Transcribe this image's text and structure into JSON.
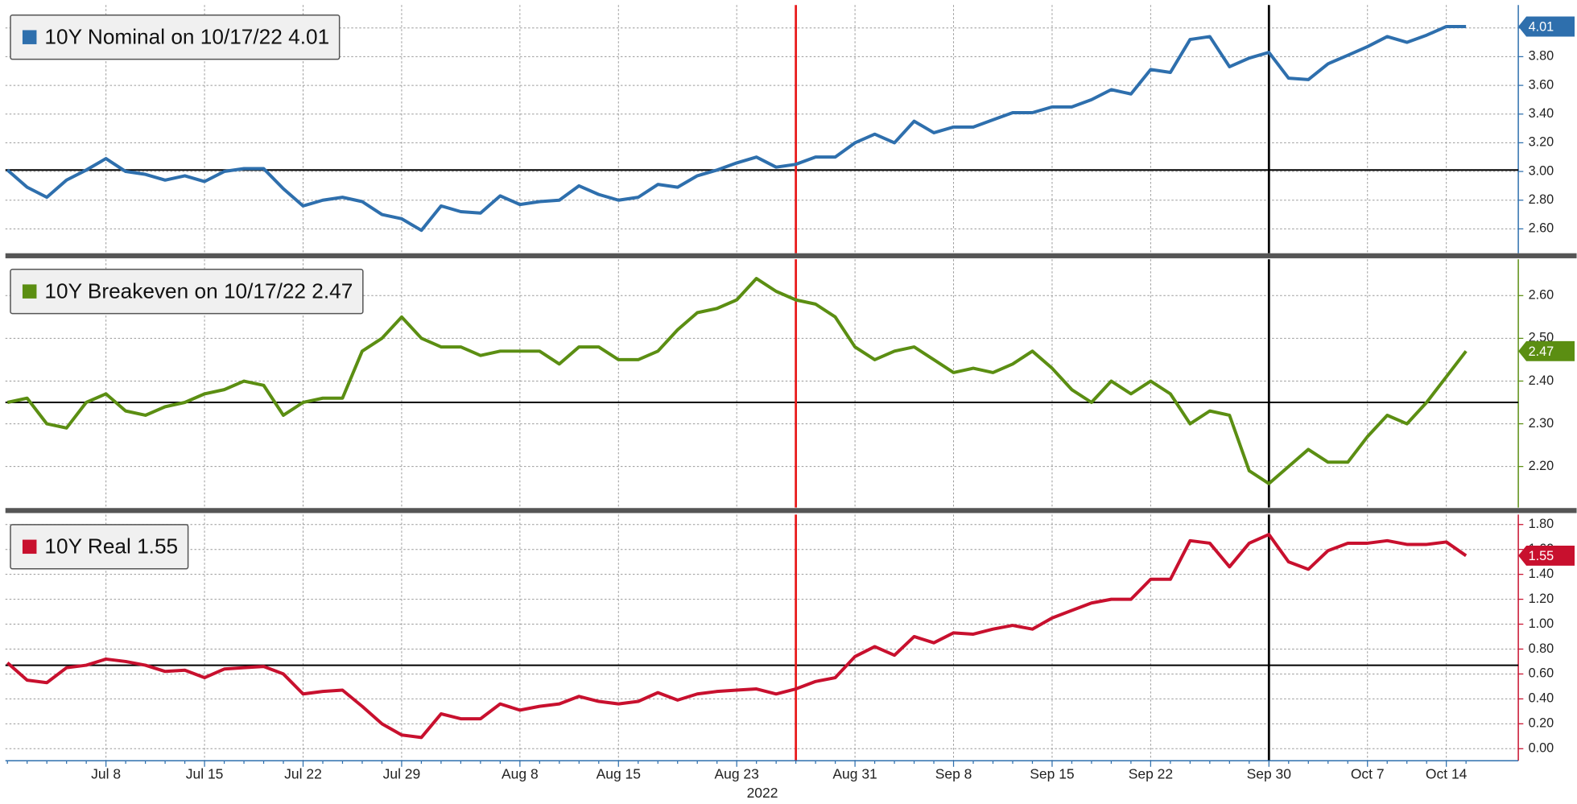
{
  "chart_data": [
    {
      "type": "line",
      "ylim": [
        2.43,
        4.16
      ],
      "yticks": [
        {
          "value": 2.6,
          "label": "2.60"
        },
        {
          "value": 2.8,
          "label": "2.80"
        },
        {
          "value": 3.0,
          "label": "3.00"
        },
        {
          "value": 3.2,
          "label": "3.20"
        },
        {
          "value": 3.4,
          "label": "3.40"
        },
        {
          "value": 3.6,
          "label": "3.60"
        },
        {
          "value": 3.8,
          "label": "3.80"
        },
        {
          "value": 4.0,
          "label": "4.00"
        }
      ],
      "hline": 3.01,
      "grid": true,
      "series": [
        {
          "name": "10Y Nominal on 10/17/22 4.01",
          "color": "#2e6fad",
          "values": [
            3.01,
            2.89,
            2.82,
            2.94,
            3.01,
            3.09,
            3.0,
            2.98,
            2.94,
            2.97,
            2.93,
            3.0,
            3.02,
            3.02,
            2.88,
            2.76,
            2.8,
            2.82,
            2.79,
            2.7,
            2.67,
            2.59,
            2.76,
            2.72,
            2.71,
            2.83,
            2.77,
            2.79,
            2.8,
            2.9,
            2.84,
            2.8,
            2.82,
            2.91,
            2.89,
            2.97,
            3.01,
            3.06,
            3.1,
            3.03,
            3.05,
            3.1,
            3.1,
            3.2,
            3.26,
            3.2,
            3.35,
            3.27,
            3.31,
            3.31,
            3.36,
            3.41,
            3.41,
            3.45,
            3.45,
            3.5,
            3.57,
            3.54,
            3.71,
            3.69,
            3.92,
            3.94,
            3.73,
            3.79,
            3.83,
            3.65,
            3.64,
            3.75,
            3.81,
            3.87,
            3.94,
            3.9,
            3.95,
            4.01,
            4.01
          ]
        }
      ]
    },
    {
      "type": "line",
      "ylim": [
        2.104,
        2.685
      ],
      "yticks": [
        {
          "value": 2.2,
          "label": "2.20"
        },
        {
          "value": 2.3,
          "label": "2.30"
        },
        {
          "value": 2.4,
          "label": "2.40"
        },
        {
          "value": 2.5,
          "label": "2.50"
        },
        {
          "value": 2.6,
          "label": "2.60"
        }
      ],
      "hline": 2.35,
      "grid": true,
      "series": [
        {
          "name": "10Y Breakeven on 10/17/22 2.47",
          "color": "#5b8e12",
          "values": [
            2.35,
            2.36,
            2.3,
            2.29,
            2.35,
            2.37,
            2.33,
            2.32,
            2.34,
            2.35,
            2.37,
            2.38,
            2.4,
            2.39,
            2.32,
            2.35,
            2.36,
            2.36,
            2.47,
            2.5,
            2.55,
            2.5,
            2.48,
            2.48,
            2.46,
            2.47,
            2.47,
            2.47,
            2.44,
            2.48,
            2.48,
            2.45,
            2.45,
            2.47,
            2.52,
            2.56,
            2.57,
            2.59,
            2.64,
            2.61,
            2.59,
            2.58,
            2.55,
            2.48,
            2.45,
            2.47,
            2.48,
            2.45,
            2.42,
            2.43,
            2.42,
            2.44,
            2.47,
            2.43,
            2.38,
            2.35,
            2.4,
            2.37,
            2.4,
            2.37,
            2.3,
            2.33,
            2.32,
            2.19,
            2.16,
            2.2,
            2.24,
            2.21,
            2.21,
            2.27,
            2.32,
            2.3,
            2.35,
            2.41,
            2.47
          ]
        }
      ]
    },
    {
      "type": "line",
      "ylim": [
        -0.097,
        1.88
      ],
      "yticks": [
        {
          "value": 0,
          "label": "0.00"
        },
        {
          "value": 0.2,
          "label": "0.20"
        },
        {
          "value": 0.4,
          "label": "0.40"
        },
        {
          "value": 0.6,
          "label": "0.60"
        },
        {
          "value": 0.8,
          "label": "0.80"
        },
        {
          "value": 1.0,
          "label": "1.00"
        },
        {
          "value": 1.2,
          "label": "1.20"
        },
        {
          "value": 1.4,
          "label": "1.40"
        },
        {
          "value": 1.6,
          "label": "1.60"
        },
        {
          "value": 1.8,
          "label": "1.80"
        }
      ],
      "hline": 0.67,
      "grid": true,
      "xlabel": "2022",
      "categories": [
        null,
        null,
        null,
        null,
        null,
        "Jul 8",
        null,
        null,
        null,
        null,
        "Jul 15",
        null,
        null,
        null,
        null,
        "Jul 22",
        null,
        null,
        null,
        null,
        "Jul 29",
        null,
        null,
        null,
        null,
        null,
        "Aug 8",
        null,
        null,
        null,
        null,
        "Aug 15",
        null,
        null,
        null,
        null,
        null,
        "Aug 23",
        null,
        null,
        null,
        null,
        null,
        "Aug 31",
        null,
        null,
        null,
        null,
        "Sep 8",
        null,
        null,
        null,
        null,
        "Sep 15",
        null,
        null,
        null,
        null,
        "Sep 22",
        null,
        null,
        null,
        null,
        null,
        "Sep 30",
        null,
        null,
        null,
        null,
        "Oct 7",
        null,
        null,
        null,
        "Oct 14",
        null
      ],
      "series": [
        {
          "name": "10Y Real 1.55",
          "color": "#c8102e",
          "values": [
            0.69,
            0.55,
            0.53,
            0.65,
            0.67,
            0.72,
            0.7,
            0.67,
            0.62,
            0.63,
            0.57,
            0.64,
            0.65,
            0.66,
            0.6,
            0.44,
            0.46,
            0.47,
            0.34,
            0.2,
            0.11,
            0.09,
            0.28,
            0.24,
            0.24,
            0.36,
            0.31,
            0.34,
            0.36,
            0.42,
            0.38,
            0.36,
            0.38,
            0.45,
            0.39,
            0.44,
            0.46,
            0.47,
            0.48,
            0.44,
            0.48,
            0.54,
            0.57,
            0.74,
            0.82,
            0.75,
            0.9,
            0.85,
            0.93,
            0.92,
            0.96,
            0.99,
            0.96,
            1.05,
            1.11,
            1.17,
            1.2,
            1.2,
            1.36,
            1.36,
            1.67,
            1.65,
            1.46,
            1.65,
            1.72,
            1.5,
            1.44,
            1.59,
            1.65,
            1.65,
            1.67,
            1.64,
            1.64,
            1.66,
            1.55
          ]
        }
      ]
    }
  ],
  "vlines": [
    {
      "x": 40,
      "color": "#e8191b"
    },
    {
      "x": 64,
      "color": "#000000"
    }
  ]
}
